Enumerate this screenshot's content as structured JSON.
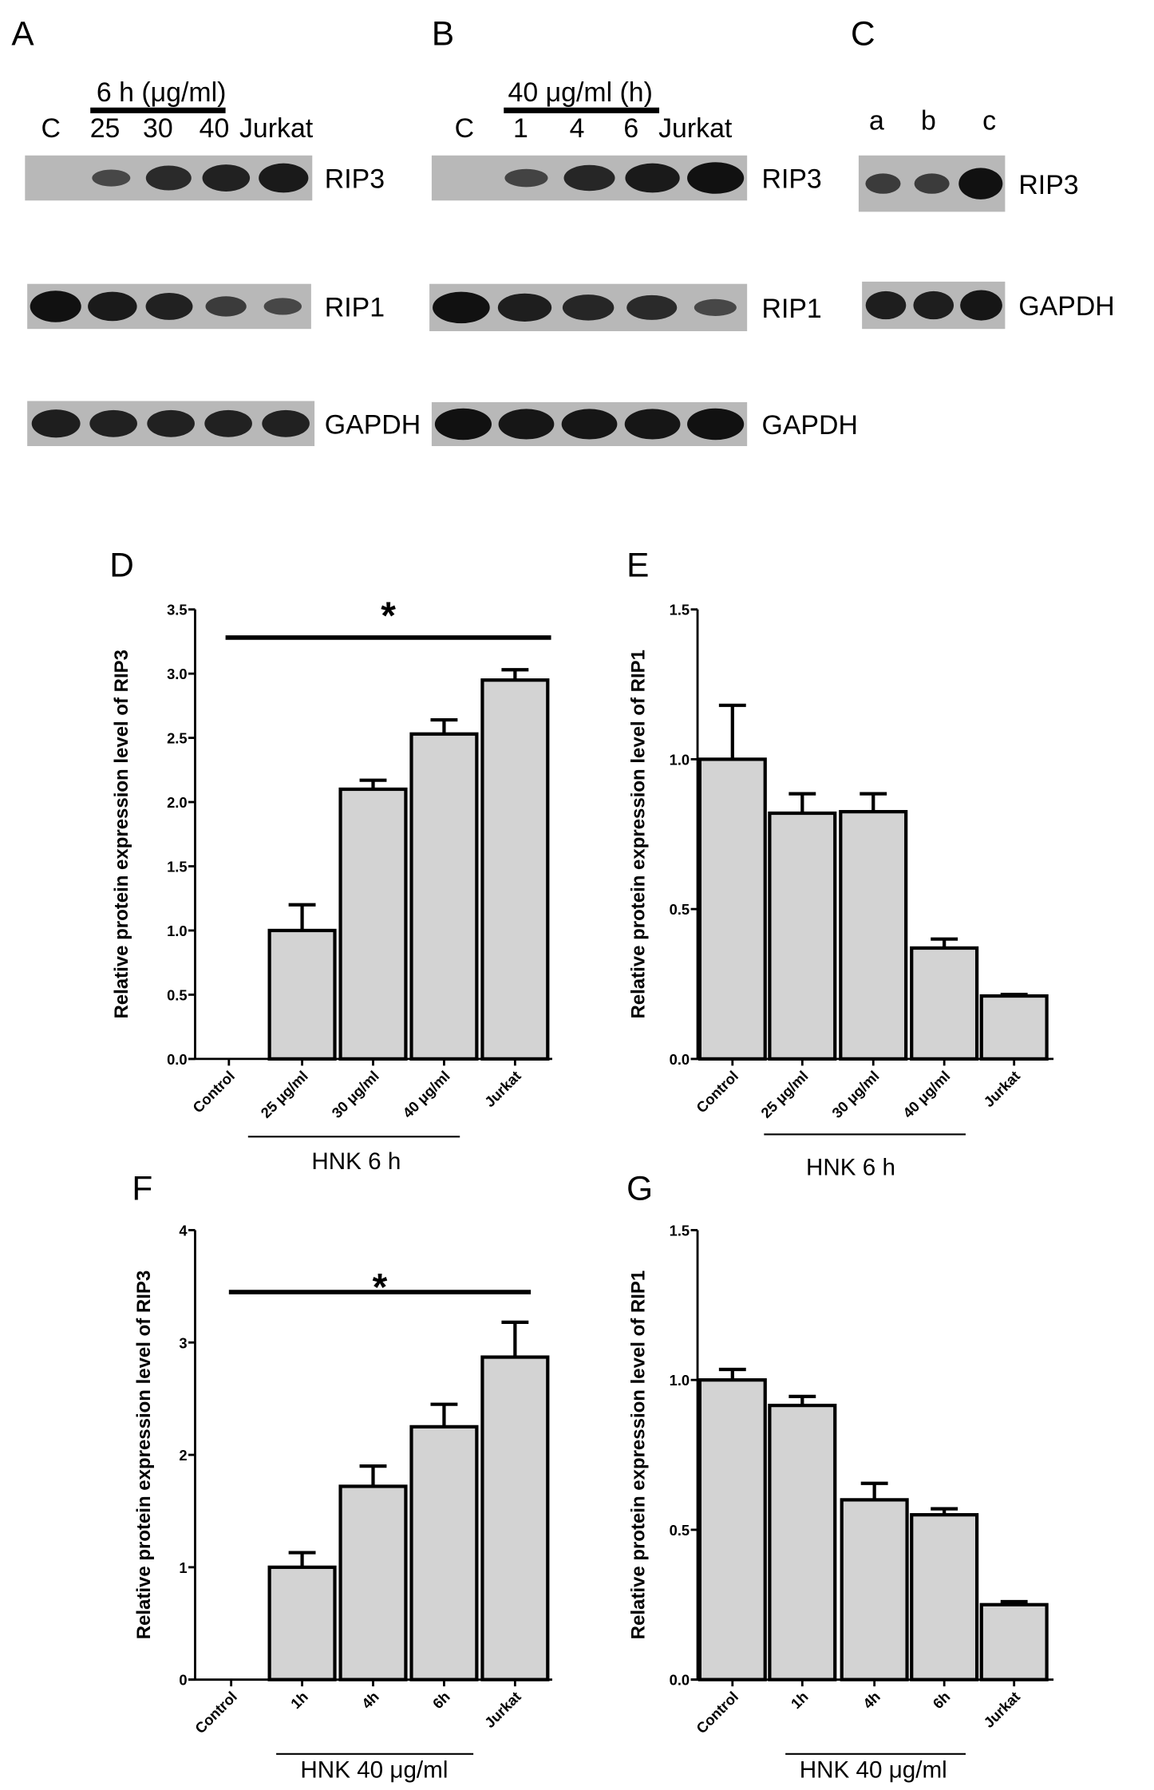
{
  "panels": {
    "A": "A",
    "B": "B",
    "C": "C",
    "D": "D",
    "E": "E",
    "F": "F",
    "G": "G"
  },
  "blots": {
    "A": {
      "header": "6 h (μg/ml)",
      "lanes": [
        "C",
        "25",
        "30",
        "40",
        "Jurkat"
      ],
      "proteins": [
        "RIP3",
        "RIP1",
        "GAPDH"
      ]
    },
    "B": {
      "header": "40 μg/ml (h)",
      "lanes": [
        "C",
        "1",
        "4",
        "6",
        "Jurkat"
      ],
      "proteins": [
        "RIP3",
        "RIP1",
        "GAPDH"
      ]
    },
    "C": {
      "lanes": [
        "a",
        "b",
        "c"
      ],
      "proteins": [
        "RIP3",
        "GAPDH"
      ]
    }
  },
  "chart_data": [
    {
      "panel": "D",
      "type": "bar",
      "categories": [
        "Control",
        "25 μg/ml",
        "30 μg/ml",
        "40 μg/ml",
        "Jurkat"
      ],
      "values": [
        0,
        1.0,
        2.1,
        2.53,
        2.95
      ],
      "error_upper": [
        0,
        1.2,
        2.17,
        2.64,
        3.03
      ],
      "ylabel": "Relative protein expression level of RIP3",
      "ylim": [
        0,
        3.5
      ],
      "yticks": [
        "0.0",
        "0.5",
        "1.0",
        "1.5",
        "2.0",
        "2.5",
        "3.0",
        "3.5"
      ],
      "group_label": "HNK 6 h",
      "significance": "*",
      "bar_color": "#d3d3d3"
    },
    {
      "panel": "E",
      "type": "bar",
      "categories": [
        "Control",
        "25 μg/ml",
        "30 μg/ml",
        "40 μg/ml",
        "Jurkat"
      ],
      "values": [
        1.0,
        0.82,
        0.825,
        0.37,
        0.21
      ],
      "error_upper": [
        1.18,
        0.885,
        0.885,
        0.4,
        0.215
      ],
      "ylabel": "Relative protein expression level of RIP1",
      "ylim": [
        0,
        1.5
      ],
      "yticks": [
        "0.0",
        "0.5",
        "1.0",
        "1.5"
      ],
      "group_label": "HNK 6 h",
      "bar_color": "#d3d3d3"
    },
    {
      "panel": "F",
      "type": "bar",
      "categories": [
        "Control",
        "1h",
        "4h",
        "6h",
        "Jurkat"
      ],
      "values": [
        0,
        1.0,
        1.72,
        2.25,
        2.87
      ],
      "error_upper": [
        0,
        1.13,
        1.9,
        2.45,
        3.18
      ],
      "ylabel": "Relative protein expression level of RIP3",
      "ylim": [
        0,
        4
      ],
      "yticks": [
        "0",
        "1",
        "2",
        "3",
        "4"
      ],
      "group_label": "HNK 40 μg/ml",
      "significance": "*",
      "bar_color": "#d3d3d3"
    },
    {
      "panel": "G",
      "type": "bar",
      "categories": [
        "Control",
        "1h",
        "4h",
        "6h",
        "Jurkat"
      ],
      "values": [
        1.0,
        0.915,
        0.6,
        0.55,
        0.25
      ],
      "error_upper": [
        1.035,
        0.945,
        0.655,
        0.57,
        0.26
      ],
      "ylabel": "Relative protein expression level of RIP1",
      "ylim": [
        0,
        1.5
      ],
      "yticks": [
        "0.0",
        "0.5",
        "1.0",
        "1.5"
      ],
      "group_label": "HNK 40 μg/ml",
      "bar_color": "#d3d3d3"
    }
  ]
}
